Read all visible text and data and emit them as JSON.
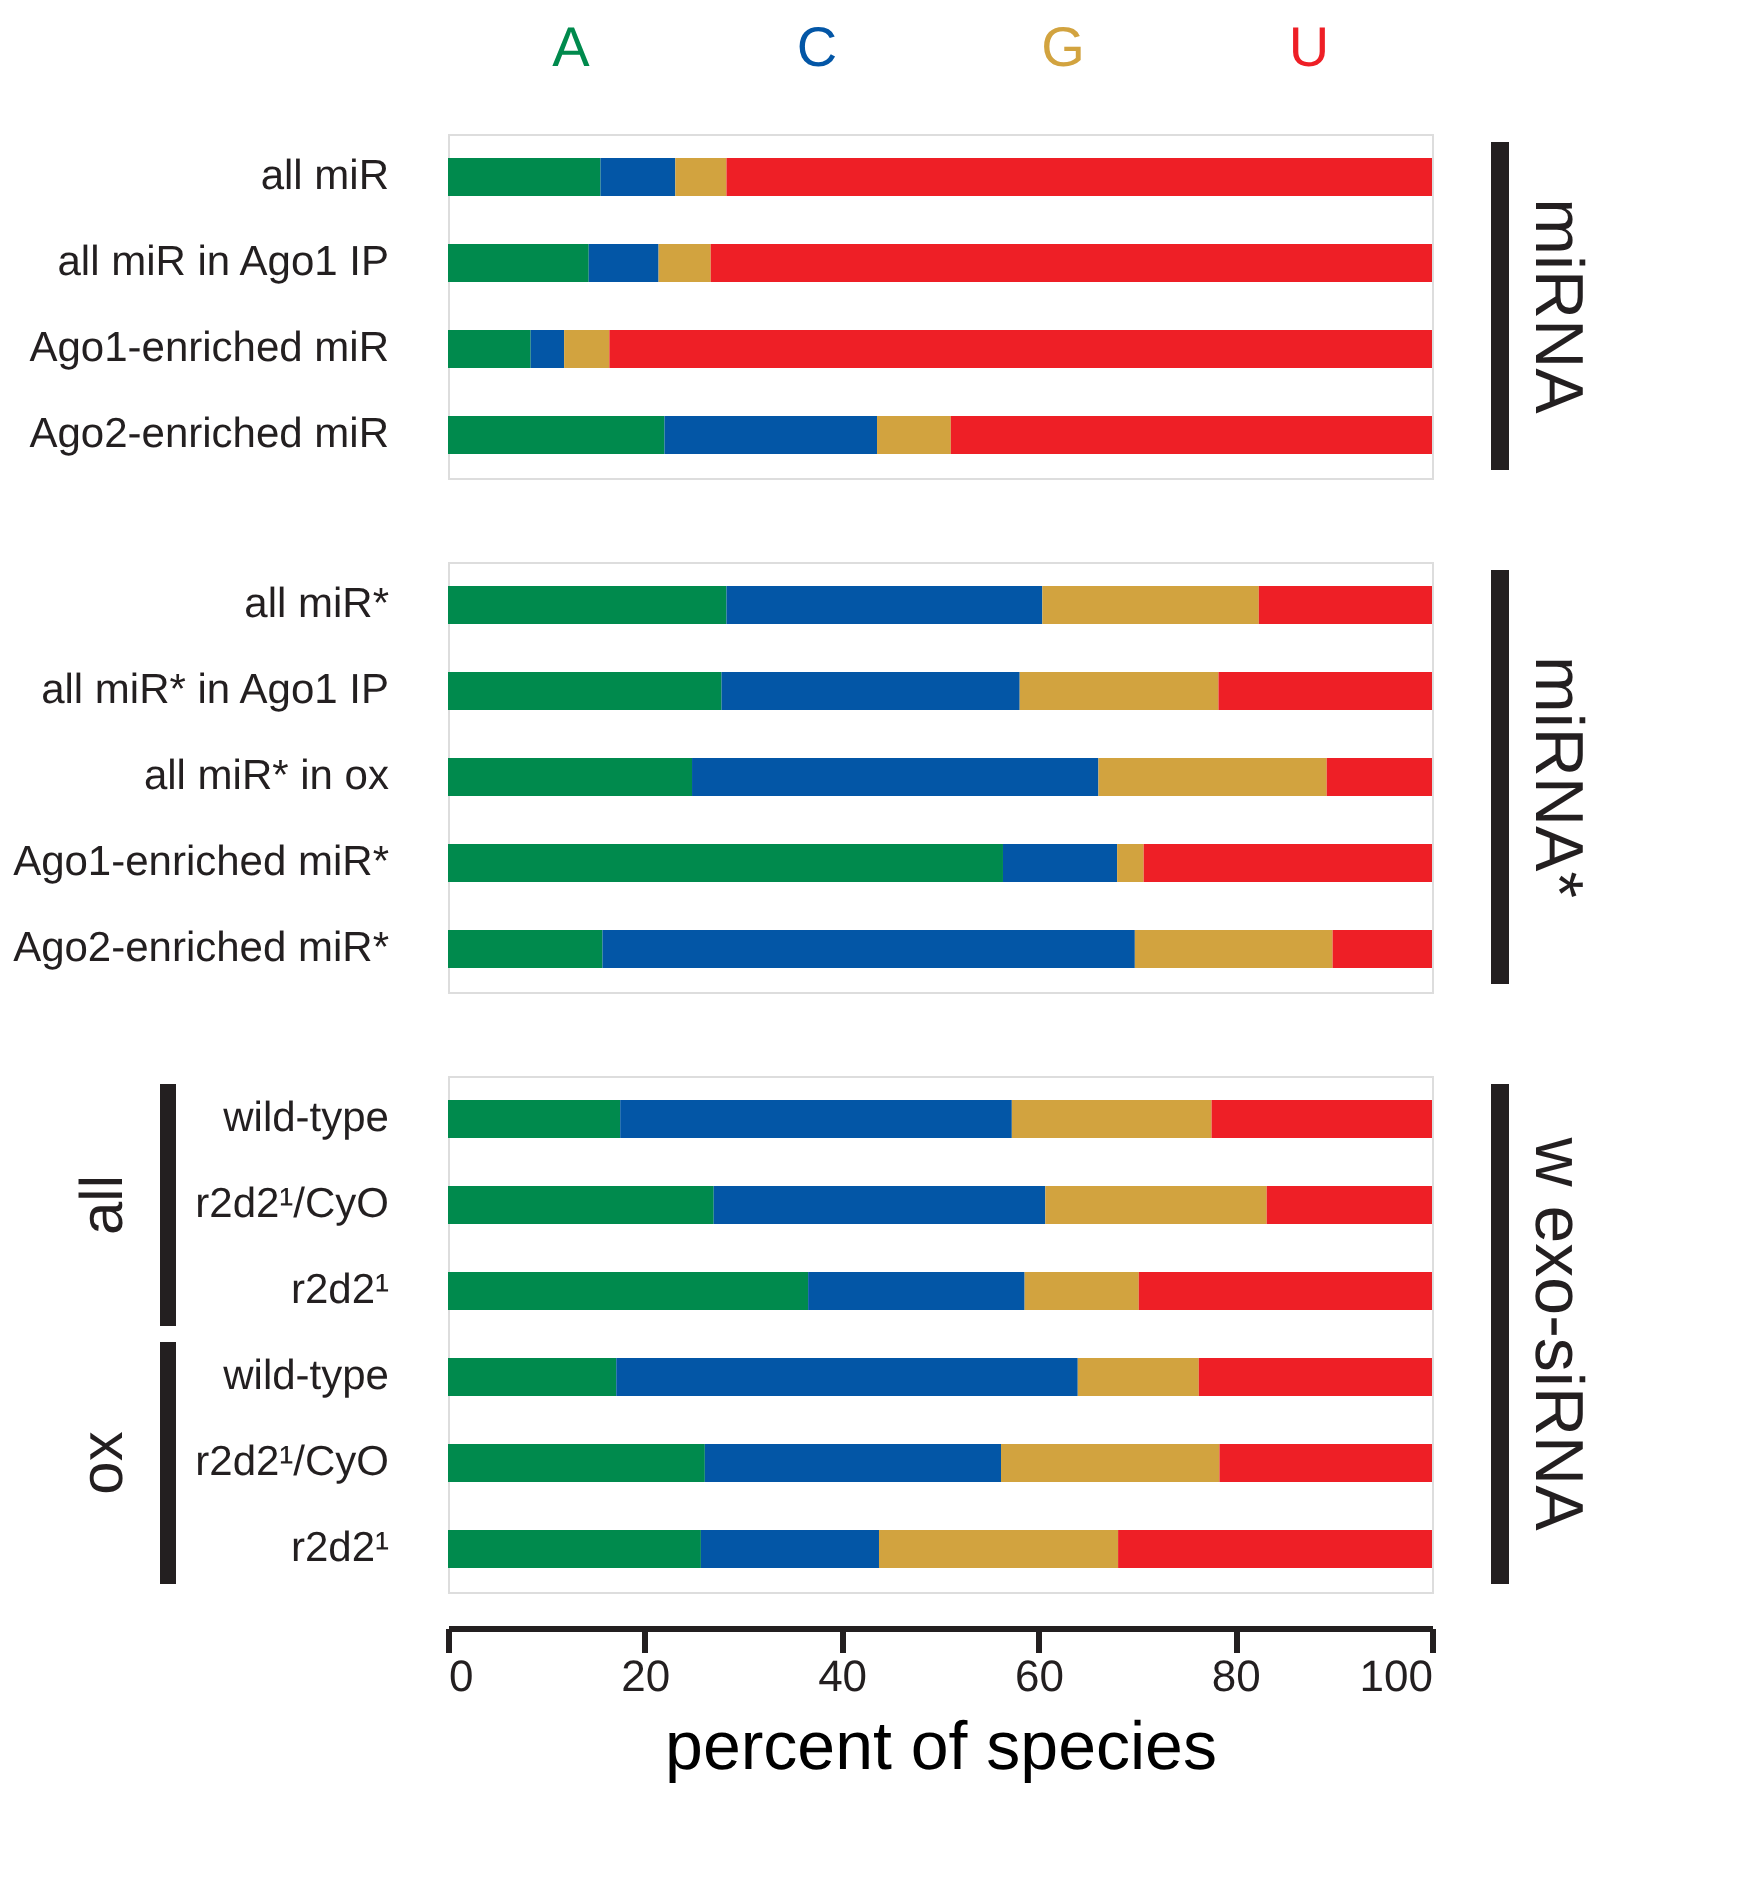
{
  "chart_data": [
    {
      "type": "bar",
      "orientation": "horizontal",
      "stacked": true,
      "legend": "top",
      "tick_labels": "y",
      "grid": false,
      "xlim": [
        0,
        100
      ],
      "categories": [
        "all miR",
        "all miR in Ago1 IP",
        "Ago1-enriched miR",
        "Ago2-enriched miR"
      ],
      "series": [
        {
          "name": "A",
          "color": "#008a4d",
          "values": [
            15.5,
            14.3,
            8.4,
            22.0
          ]
        },
        {
          "name": "C",
          "color": "#0356a6",
          "values": [
            7.6,
            7.1,
            3.4,
            21.6
          ]
        },
        {
          "name": "G",
          "color": "#d2a33f",
          "values": [
            5.2,
            5.3,
            4.6,
            7.5
          ]
        },
        {
          "name": "U",
          "color": "#ee1f26",
          "values": [
            71.7,
            73.3,
            83.6,
            48.9
          ]
        }
      ],
      "annotations": [
        "miRNA"
      ]
    },
    {
      "type": "bar",
      "orientation": "horizontal",
      "stacked": true,
      "tick_labels": "y",
      "grid": false,
      "xlim": [
        0,
        100
      ],
      "categories": [
        "all miR*",
        "all miR* in Ago1 IP",
        "all miR* in ox",
        "Ago1-enriched miR*",
        "Ago2-enriched miR*"
      ],
      "series": [
        {
          "color": "#008a4d",
          "values": [
            28.3,
            27.8,
            24.8,
            56.4,
            15.7
          ]
        },
        {
          "color": "#0356a6",
          "values": [
            32.1,
            30.3,
            41.3,
            11.6,
            54.1
          ]
        },
        {
          "color": "#d2a33f",
          "values": [
            22.0,
            20.2,
            23.2,
            2.7,
            20.1
          ]
        },
        {
          "color": "#ee1f26",
          "values": [
            17.6,
            21.7,
            10.7,
            29.3,
            10.1
          ]
        }
      ],
      "annotations": [
        "miRNA*"
      ]
    },
    {
      "type": "bar",
      "orientation": "horizontal",
      "stacked": true,
      "grid": false,
      "xlim": [
        0,
        100
      ],
      "xticks": [
        0,
        20,
        40,
        60,
        80,
        100
      ],
      "xlabel": "percent of species",
      "categories": [
        "wild-type",
        "r2d2¹/CyO",
        "r2d2¹",
        "wild-type",
        "r2d2¹/CyO",
        "r2d2¹"
      ],
      "series": [
        {
          "color": "#008a4d",
          "values": [
            17.5,
            27.0,
            36.6,
            17.1,
            26.1,
            25.7
          ]
        },
        {
          "color": "#0356a6",
          "values": [
            39.8,
            33.7,
            22.0,
            46.9,
            30.1,
            18.1
          ]
        },
        {
          "color": "#d2a33f",
          "values": [
            20.3,
            22.5,
            11.6,
            12.3,
            22.2,
            24.3
          ]
        },
        {
          "color": "#ee1f26",
          "values": [
            22.4,
            16.8,
            29.8,
            23.7,
            21.6,
            31.9
          ]
        }
      ],
      "annotations": [
        "w exo-siRNA",
        "all",
        "ox"
      ]
    }
  ]
}
